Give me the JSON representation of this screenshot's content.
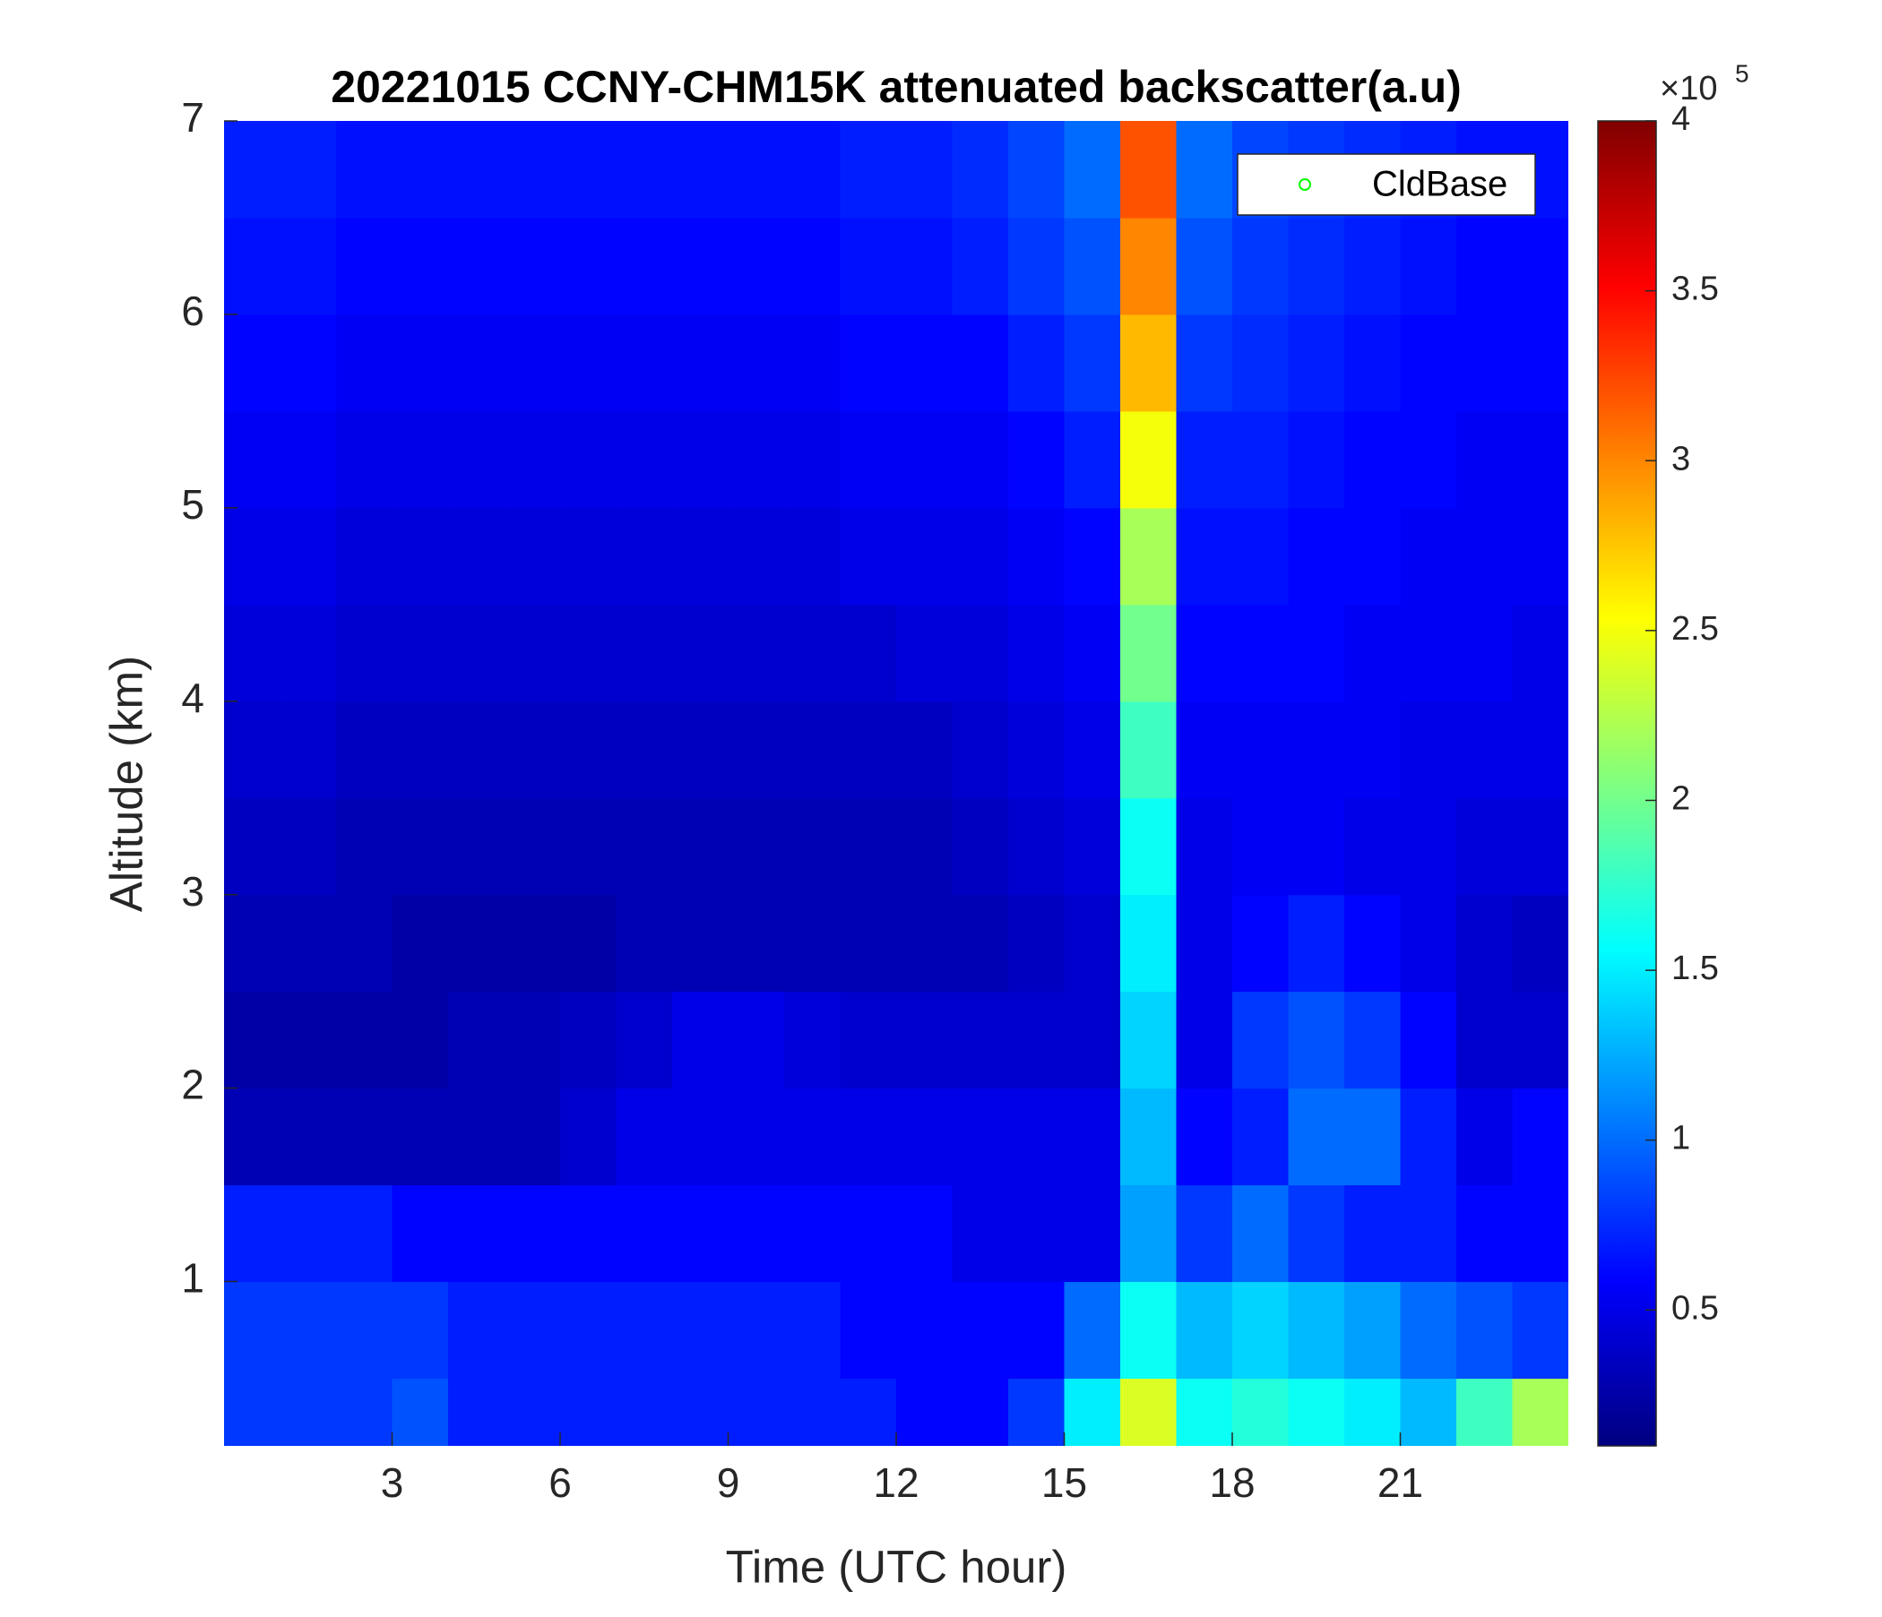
{
  "chart_data": {
    "type": "heatmap",
    "title": "20221015 CCNY-CHM15K attenuated backscatter(a.u)",
    "xlabel": "Time (UTC hour)",
    "ylabel": "Altitude (km)",
    "xlim": [
      0,
      24
    ],
    "xticks": [
      3,
      6,
      9,
      12,
      15,
      18,
      21
    ],
    "ylim": [
      0.15,
      7
    ],
    "yticks": [
      1,
      2,
      3,
      4,
      5,
      6,
      7
    ],
    "colormap": "jet",
    "zlim": [
      0.1,
      4
    ],
    "colorbar_ticks": [
      0.5,
      1,
      1.5,
      2,
      2.5,
      3,
      3.5,
      4
    ],
    "colorbar_multiplier": "×10",
    "colorbar_exponent": "5",
    "legend_position": "upper right",
    "series": [
      {
        "name": "CldBase",
        "color": "#00ff00",
        "marker": "o",
        "x": [],
        "y": []
      }
    ],
    "x": [
      0.5,
      1.5,
      2.5,
      3.5,
      4.5,
      5.5,
      6.5,
      7.5,
      8.5,
      9.5,
      10.5,
      11.5,
      12.5,
      13.5,
      14.5,
      15.5,
      16.5,
      17.5,
      18.5,
      19.5,
      20.5,
      21.5,
      22.5,
      23.5
    ],
    "y": [
      0.25,
      0.75,
      1.25,
      1.75,
      2.25,
      2.75,
      3.25,
      3.75,
      4.25,
      4.75,
      5.25,
      5.75,
      6.25,
      6.75
    ],
    "z": [
      [
        0.8,
        0.8,
        0.8,
        0.9,
        0.7,
        0.7,
        0.7,
        0.7,
        0.7,
        0.7,
        0.7,
        0.7,
        0.6,
        0.6,
        0.8,
        1.5,
        2.4,
        1.6,
        1.7,
        1.6,
        1.5,
        1.3,
        1.8,
        2.2
      ],
      [
        0.8,
        0.8,
        0.8,
        0.8,
        0.7,
        0.7,
        0.7,
        0.7,
        0.7,
        0.7,
        0.7,
        0.6,
        0.6,
        0.6,
        0.6,
        1.0,
        1.6,
        1.3,
        1.4,
        1.3,
        1.2,
        1.0,
        0.9,
        0.8
      ],
      [
        0.7,
        0.7,
        0.7,
        0.6,
        0.6,
        0.6,
        0.6,
        0.6,
        0.6,
        0.6,
        0.6,
        0.6,
        0.6,
        0.5,
        0.5,
        0.5,
        1.2,
        0.8,
        1.0,
        0.8,
        0.7,
        0.7,
        0.6,
        0.6
      ],
      [
        0.3,
        0.3,
        0.3,
        0.3,
        0.3,
        0.3,
        0.4,
        0.5,
        0.5,
        0.5,
        0.5,
        0.5,
        0.5,
        0.5,
        0.5,
        0.5,
        1.3,
        0.6,
        0.7,
        1.0,
        1.0,
        0.7,
        0.5,
        0.6
      ],
      [
        0.25,
        0.25,
        0.25,
        0.25,
        0.3,
        0.3,
        0.35,
        0.4,
        0.5,
        0.5,
        0.45,
        0.4,
        0.4,
        0.4,
        0.4,
        0.4,
        1.4,
        0.5,
        0.8,
        0.9,
        0.8,
        0.6,
        0.4,
        0.4
      ],
      [
        0.3,
        0.3,
        0.3,
        0.25,
        0.25,
        0.25,
        0.25,
        0.3,
        0.3,
        0.3,
        0.3,
        0.3,
        0.3,
        0.3,
        0.35,
        0.4,
        1.5,
        0.5,
        0.6,
        0.7,
        0.6,
        0.5,
        0.4,
        0.35
      ],
      [
        0.35,
        0.35,
        0.3,
        0.3,
        0.3,
        0.3,
        0.3,
        0.3,
        0.3,
        0.3,
        0.3,
        0.3,
        0.3,
        0.35,
        0.4,
        0.45,
        1.6,
        0.5,
        0.55,
        0.55,
        0.5,
        0.5,
        0.45,
        0.45
      ],
      [
        0.4,
        0.4,
        0.35,
        0.35,
        0.35,
        0.35,
        0.35,
        0.35,
        0.35,
        0.35,
        0.35,
        0.35,
        0.35,
        0.4,
        0.45,
        0.5,
        1.8,
        0.55,
        0.55,
        0.55,
        0.55,
        0.5,
        0.5,
        0.5
      ],
      [
        0.45,
        0.45,
        0.4,
        0.4,
        0.4,
        0.4,
        0.4,
        0.4,
        0.4,
        0.4,
        0.4,
        0.4,
        0.45,
        0.45,
        0.5,
        0.55,
        2.0,
        0.6,
        0.6,
        0.6,
        0.55,
        0.55,
        0.55,
        0.5
      ],
      [
        0.5,
        0.5,
        0.45,
        0.45,
        0.45,
        0.45,
        0.45,
        0.45,
        0.45,
        0.45,
        0.45,
        0.5,
        0.5,
        0.5,
        0.55,
        0.6,
        2.2,
        0.65,
        0.65,
        0.6,
        0.6,
        0.55,
        0.55,
        0.55
      ],
      [
        0.55,
        0.55,
        0.5,
        0.5,
        0.5,
        0.5,
        0.5,
        0.5,
        0.5,
        0.5,
        0.5,
        0.55,
        0.55,
        0.55,
        0.6,
        0.7,
        2.5,
        0.7,
        0.7,
        0.65,
        0.6,
        0.6,
        0.55,
        0.55
      ],
      [
        0.6,
        0.6,
        0.55,
        0.55,
        0.55,
        0.55,
        0.55,
        0.55,
        0.55,
        0.55,
        0.55,
        0.6,
        0.6,
        0.6,
        0.7,
        0.8,
        2.8,
        0.8,
        0.75,
        0.7,
        0.65,
        0.6,
        0.6,
        0.6
      ],
      [
        0.65,
        0.65,
        0.6,
        0.6,
        0.6,
        0.6,
        0.6,
        0.6,
        0.6,
        0.6,
        0.6,
        0.65,
        0.65,
        0.7,
        0.8,
        0.9,
        3.0,
        0.9,
        0.8,
        0.75,
        0.7,
        0.65,
        0.6,
        0.6
      ],
      [
        0.7,
        0.7,
        0.65,
        0.65,
        0.65,
        0.65,
        0.65,
        0.65,
        0.65,
        0.65,
        0.65,
        0.7,
        0.7,
        0.75,
        0.85,
        1.0,
        3.2,
        1.0,
        0.85,
        0.8,
        0.75,
        0.7,
        0.65,
        0.65
      ]
    ]
  }
}
